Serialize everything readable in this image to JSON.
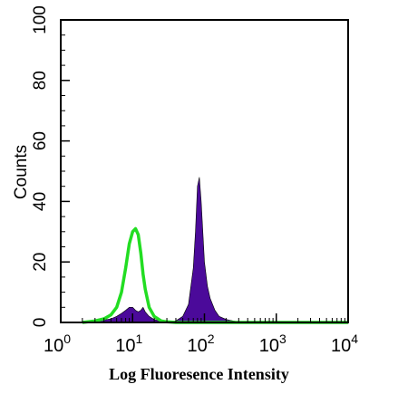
{
  "chart_data": {
    "type": "area",
    "title": "",
    "xlabel": "Log Fluoresence Intensity",
    "ylabel": "Counts",
    "xscale": "log",
    "xlim": [
      1,
      10000
    ],
    "ylim": [
      0,
      100
    ],
    "x_ticks": [
      {
        "value": 1,
        "base": "10",
        "exp": "0"
      },
      {
        "value": 10,
        "base": "10",
        "exp": "1"
      },
      {
        "value": 100,
        "base": "10",
        "exp": "2"
      },
      {
        "value": 1000,
        "base": "10",
        "exp": "3"
      },
      {
        "value": 10000,
        "base": "10",
        "exp": "4"
      }
    ],
    "y_ticks": [
      "0",
      "20",
      "40",
      "60",
      "80",
      "100"
    ],
    "grid": false,
    "series": [
      {
        "style": "filled",
        "color": "#4b0a9a",
        "x": [
          2,
          3,
          4,
          5,
          6,
          7,
          8,
          9,
          10,
          11,
          12,
          13,
          14,
          15,
          17,
          20,
          25,
          30,
          40,
          50,
          60,
          70,
          75,
          80,
          85,
          90,
          95,
          100,
          110,
          120,
          140,
          160,
          200,
          250,
          300,
          400,
          500,
          1000,
          10000
        ],
        "values": [
          0,
          0.3,
          0.8,
          1.2,
          2,
          3,
          4,
          5,
          5,
          4,
          3.5,
          4,
          5,
          3.5,
          2,
          1,
          0.3,
          0,
          0.5,
          2,
          6,
          18,
          30,
          45,
          48,
          40,
          30,
          20,
          12,
          8,
          4,
          2,
          1,
          0.5,
          0.2,
          0,
          0,
          0,
          0
        ]
      },
      {
        "style": "outline",
        "color": "#22dd22",
        "x": [
          2,
          3,
          4,
          5,
          6,
          7,
          8,
          9,
          10,
          11,
          12,
          13,
          14,
          15,
          17,
          20,
          25,
          30,
          40,
          50,
          100,
          1000,
          10000
        ],
        "values": [
          0,
          0.5,
          1.2,
          2.5,
          5,
          10,
          18,
          26,
          30,
          31,
          29,
          23,
          16,
          11,
          5,
          2,
          0.5,
          0.2,
          0,
          0,
          0,
          0,
          0
        ]
      }
    ]
  }
}
